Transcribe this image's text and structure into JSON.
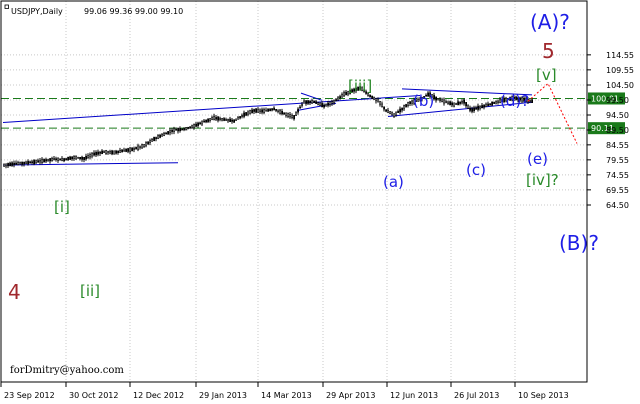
{
  "header": {
    "symbol": "USDJPY,Daily",
    "ohlc": "99.06 99.36 99.00 99.10"
  },
  "watermark": "forDmitry@yahoo.com",
  "colors": {
    "background": "#ffffff",
    "grid": "#c8c8c8",
    "candle": "#000000",
    "trendline": "#0000c8",
    "level_line": "#1a7a1a",
    "level_label_bg": "#1a7a1a",
    "level_label_text": "#ffffff",
    "projection": "#ff0000",
    "wave_blue": "#1e1ee6",
    "wave_green": "#2a8a2a",
    "wave_red": "#a0282d"
  },
  "chart_data": {
    "type": "candlestick",
    "title": "USDJPY,Daily",
    "ylim": [
      61.0,
      117.7
    ],
    "y_ticks": [
      "114.55",
      "109.55",
      "104.50",
      "99.50",
      "94.50",
      "89.50",
      "84.55",
      "79.55",
      "74.55",
      "69.55",
      "64.50"
    ],
    "x_ticks": [
      "23 Sep 2012",
      "30 Oct 2012",
      "12 Dec 2012",
      "29 Jan 2013",
      "14 Mar 2013",
      "29 Apr 2013",
      "12 Jun 2013",
      "26 Jul 2013",
      "10 Sep 2013"
    ],
    "grid": true,
    "levels": [
      {
        "value": 100.01,
        "label": "100.01"
      },
      {
        "value": 90.11,
        "label": "90.11"
      }
    ],
    "price_path": [
      [
        0,
        77.8
      ],
      [
        10,
        78.2
      ],
      [
        20,
        78.5
      ],
      [
        30,
        78.8
      ],
      [
        40,
        79.3
      ],
      [
        50,
        79.8
      ],
      [
        60,
        79.6
      ],
      [
        70,
        80.4
      ],
      [
        80,
        80.0
      ],
      [
        90,
        81.5
      ],
      [
        100,
        82.2
      ],
      [
        110,
        82.0
      ],
      [
        120,
        82.6
      ],
      [
        130,
        83.2
      ],
      [
        140,
        84.3
      ],
      [
        150,
        86.5
      ],
      [
        160,
        88.0
      ],
      [
        170,
        89.5
      ],
      [
        180,
        89.8
      ],
      [
        190,
        90.8
      ],
      [
        200,
        92.3
      ],
      [
        210,
        93.5
      ],
      [
        220,
        93.0
      ],
      [
        230,
        92.5
      ],
      [
        240,
        94.6
      ],
      [
        250,
        96.0
      ],
      [
        260,
        95.8
      ],
      [
        270,
        96.5
      ],
      [
        280,
        95.0
      ],
      [
        290,
        93.8
      ],
      [
        295,
        96.5
      ],
      [
        300,
        98.8
      ],
      [
        310,
        98.9
      ],
      [
        320,
        97.5
      ],
      [
        330,
        99.0
      ],
      [
        340,
        101.4
      ],
      [
        350,
        102.8
      ],
      [
        357,
        103.6
      ],
      [
        365,
        101.0
      ],
      [
        375,
        99.0
      ],
      [
        382,
        96.0
      ],
      [
        390,
        94.5
      ],
      [
        398,
        96.5
      ],
      [
        405,
        98.5
      ],
      [
        415,
        99.5
      ],
      [
        425,
        101.5
      ],
      [
        432,
        100.0
      ],
      [
        440,
        99.0
      ],
      [
        450,
        98.0
      ],
      [
        460,
        99.0
      ],
      [
        467,
        96.0
      ],
      [
        473,
        96.8
      ],
      [
        480,
        97.5
      ],
      [
        490,
        98.5
      ],
      [
        500,
        99.5
      ],
      [
        510,
        100.2
      ],
      [
        520,
        99.6
      ],
      [
        528,
        99.1
      ]
    ],
    "annotations": [
      {
        "text": "(A)?",
        "color": "blue"
      },
      {
        "text": "5",
        "color": "red"
      },
      {
        "text": "[v]",
        "color": "green"
      },
      {
        "text": "[iii]",
        "color": "green"
      },
      {
        "text": "(b)",
        "color": "blue"
      },
      {
        "text": "(d)?",
        "color": "blue"
      },
      {
        "text": "(a)",
        "color": "blue"
      },
      {
        "text": "(c)",
        "color": "blue"
      },
      {
        "text": "(e)",
        "color": "blue"
      },
      {
        "text": "[iv]?",
        "color": "green"
      },
      {
        "text": "[i]",
        "color": "green"
      },
      {
        "text": "[ii]",
        "color": "green"
      },
      {
        "text": "4",
        "color": "red"
      },
      {
        "text": "(B)?",
        "color": "blue"
      }
    ]
  }
}
